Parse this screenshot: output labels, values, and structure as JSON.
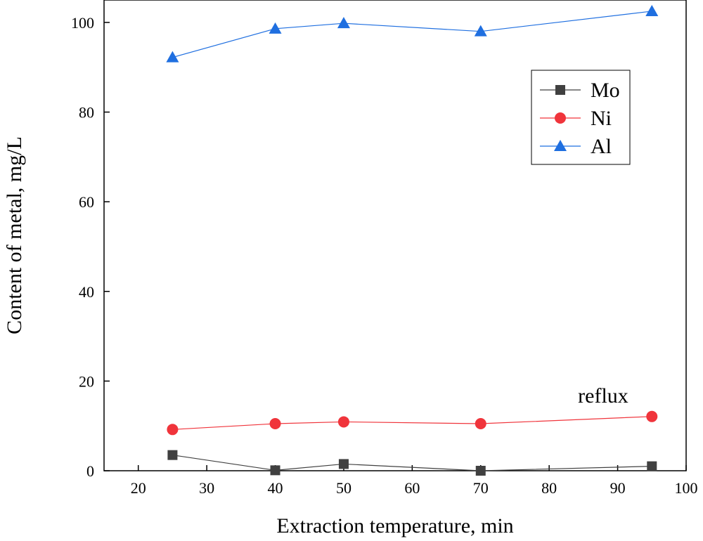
{
  "chart_data": {
    "type": "line",
    "xlabel": "Extraction temperature, min",
    "ylabel": "Content of metal, mg/L",
    "xlim": [
      15,
      100
    ],
    "ylim": [
      0,
      105
    ],
    "xticks": [
      20,
      30,
      40,
      50,
      60,
      70,
      80,
      90,
      100
    ],
    "yticks": [
      0,
      20,
      40,
      60,
      80,
      100
    ],
    "grid": false,
    "legend_position": "top-right",
    "annotation": "reflux",
    "x": [
      25,
      40,
      50,
      70,
      95
    ],
    "series": [
      {
        "name": "Mo",
        "values": [
          3.5,
          0.1,
          1.5,
          0.0,
          1.0
        ],
        "color": "#404040",
        "marker": "square"
      },
      {
        "name": "Ni",
        "values": [
          9.2,
          10.5,
          10.9,
          10.5,
          12.1
        ],
        "color": "#f0343b",
        "marker": "circle"
      },
      {
        "name": "Al",
        "values": [
          92.2,
          98.6,
          99.8,
          98.0,
          102.5
        ],
        "color": "#1f6fe0",
        "marker": "triangle"
      }
    ]
  }
}
